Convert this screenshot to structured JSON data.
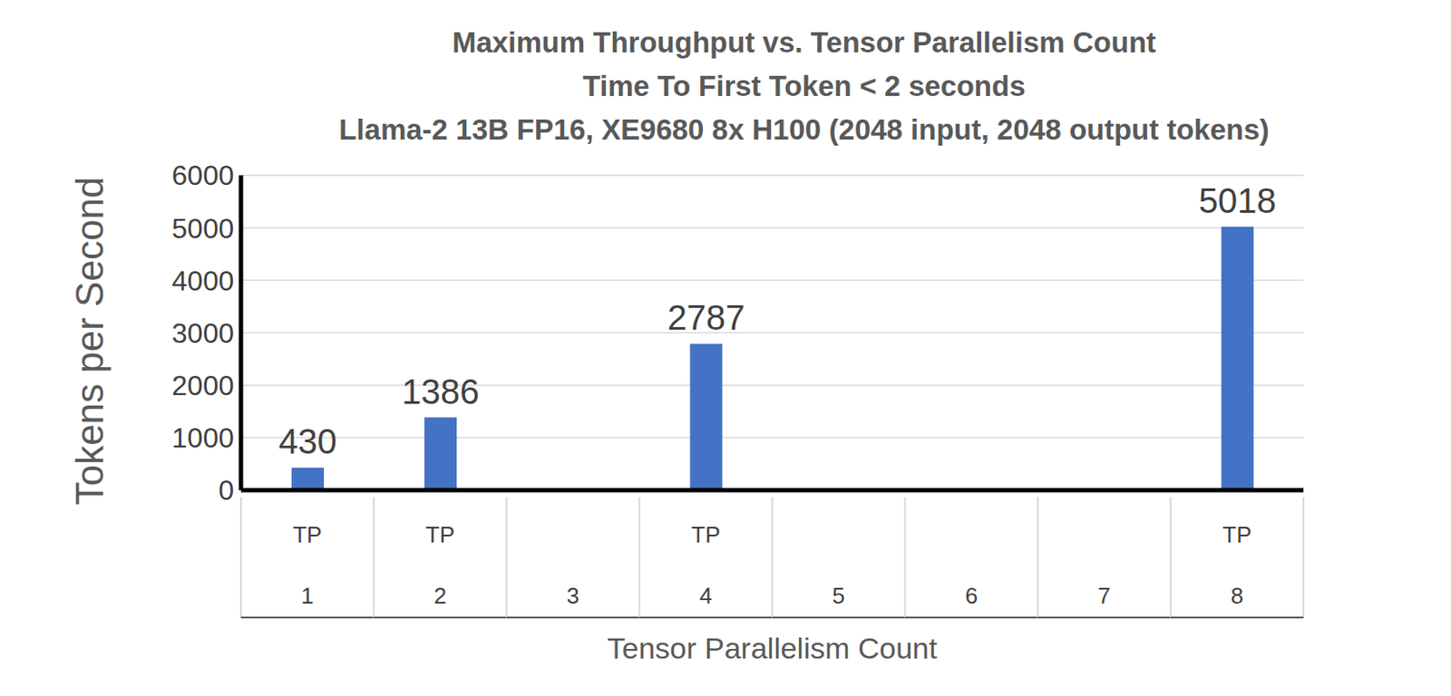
{
  "chart_data": {
    "type": "bar",
    "title": "Maximum Throughput vs. Tensor Parallelism Count",
    "subtitle": [
      "Time To First Token < 2 seconds",
      "Llama-2 13B FP16, XE9680 8x H100 (2048 input, 2048 output tokens)"
    ],
    "x_label": "Tensor Parallelism Count",
    "y_label": "Tokens per Second",
    "categories": [
      "TP 1",
      "TP 2",
      "3",
      "TP 4",
      "5",
      "6",
      "7",
      "TP 8"
    ],
    "values": [
      430,
      1386,
      null,
      2787,
      null,
      null,
      null,
      5018
    ],
    "color": "#4472c4",
    "ylim": [
      0,
      6000
    ],
    "yticks": [
      0,
      1000,
      2000,
      3000,
      4000,
      5000,
      6000
    ],
    "grid": true,
    "data_labels": true
  }
}
